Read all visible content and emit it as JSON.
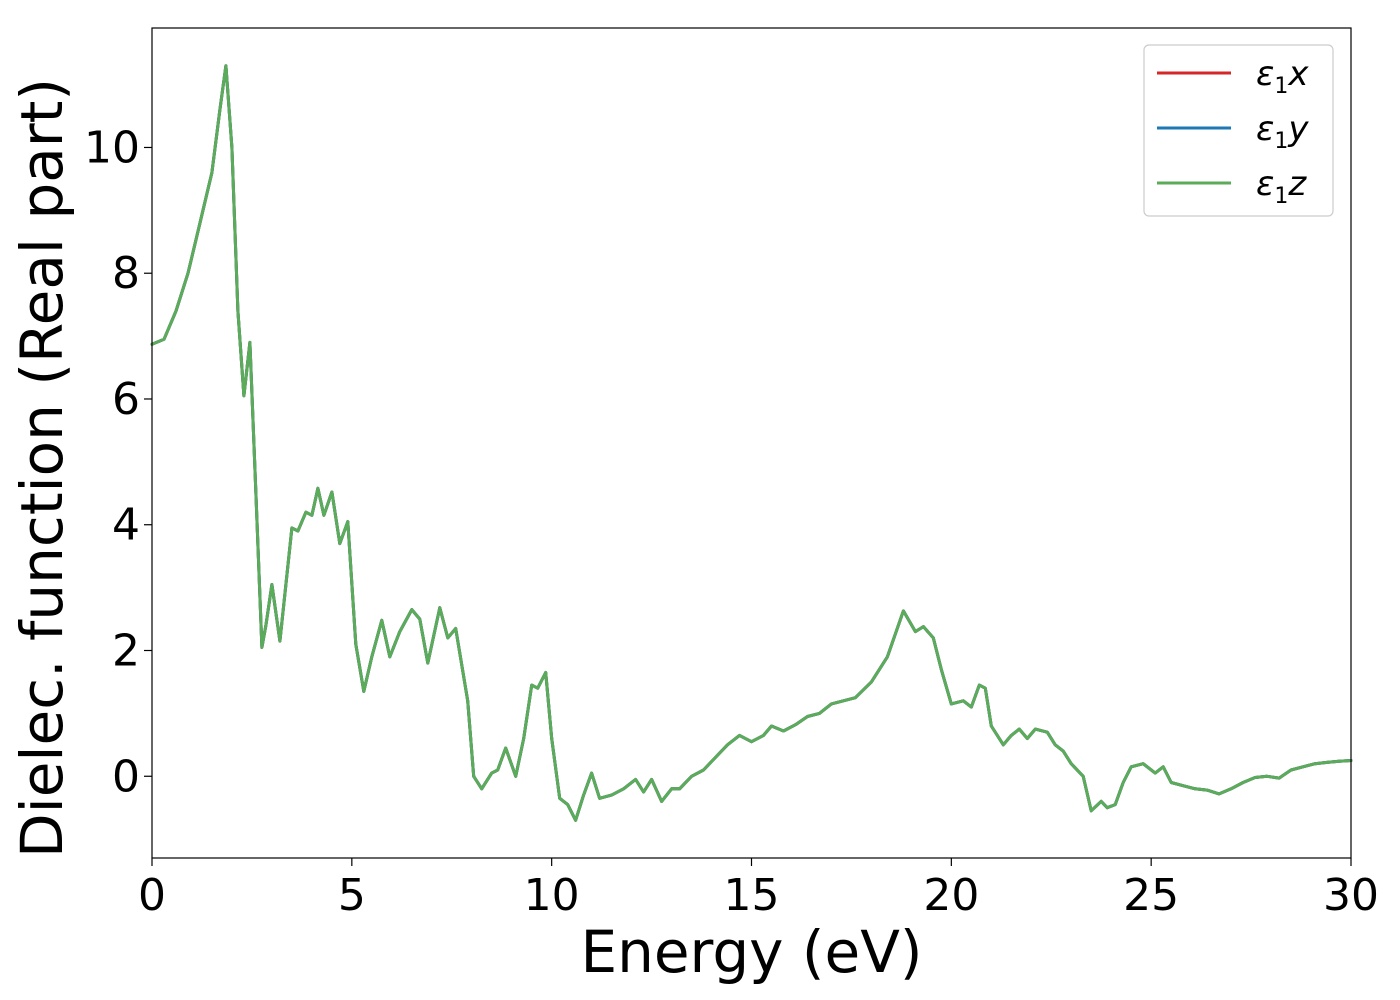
{
  "chart_data": {
    "type": "line",
    "title": "",
    "xlabel": "Energy (eV)",
    "ylabel": "Dielec. function (Real part)",
    "xlim": [
      0,
      30
    ],
    "ylim": [
      -1.3,
      11.9
    ],
    "xticks": [
      0,
      5,
      10,
      15,
      20,
      25,
      30
    ],
    "xtick_labels": [
      "0",
      "5",
      "10",
      "15",
      "20",
      "25",
      "30"
    ],
    "yticks": [
      0,
      2,
      4,
      6,
      8,
      10
    ],
    "ytick_labels": [
      "0",
      "2",
      "4",
      "6",
      "8",
      "10"
    ],
    "grid": false,
    "legend_position": "top-right",
    "series": [
      {
        "name": "ε1x",
        "base": "ε",
        "sub": "1",
        "axis": "x",
        "color": "#d62728",
        "x": [
          0,
          0.3,
          0.6,
          0.9,
          1.2,
          1.5,
          1.7,
          1.85,
          2.0,
          2.15,
          2.3,
          2.45,
          2.6,
          2.75,
          2.85,
          3.0,
          3.2,
          3.5,
          3.65,
          3.85,
          4.0,
          4.15,
          4.3,
          4.5,
          4.7,
          4.9,
          5.1,
          5.3,
          5.5,
          5.75,
          5.95,
          6.2,
          6.5,
          6.7,
          6.9,
          7.2,
          7.4,
          7.6,
          7.9,
          8.05,
          8.25,
          8.5,
          8.65,
          8.85,
          9.1,
          9.3,
          9.5,
          9.65,
          9.85,
          10.0,
          10.2,
          10.4,
          10.6,
          10.8,
          11.0,
          11.2,
          11.5,
          11.8,
          12.1,
          12.3,
          12.5,
          12.75,
          13.0,
          13.2,
          13.5,
          13.8,
          14.1,
          14.4,
          14.7,
          15.0,
          15.3,
          15.5,
          15.8,
          16.1,
          16.4,
          16.7,
          17.0,
          17.3,
          17.6,
          18.0,
          18.4,
          18.8,
          19.1,
          19.3,
          19.55,
          19.75,
          20.0,
          20.3,
          20.5,
          20.7,
          20.85,
          21.0,
          21.3,
          21.5,
          21.7,
          21.9,
          22.1,
          22.4,
          22.6,
          22.8,
          23.0,
          23.3,
          23.5,
          23.75,
          23.9,
          24.1,
          24.3,
          24.5,
          24.8,
          25.1,
          25.3,
          25.5,
          25.8,
          26.1,
          26.4,
          26.7,
          27.0,
          27.3,
          27.6,
          27.9,
          28.2,
          28.5,
          28.8,
          29.1,
          29.4,
          29.7,
          30.0
        ],
        "y": [
          6.87,
          6.95,
          7.4,
          8.0,
          8.8,
          9.6,
          10.6,
          11.3,
          10.0,
          7.4,
          6.05,
          6.9,
          4.5,
          2.05,
          2.4,
          3.05,
          2.15,
          3.95,
          3.9,
          4.2,
          4.15,
          4.58,
          4.15,
          4.52,
          3.7,
          4.05,
          2.1,
          1.35,
          1.9,
          2.48,
          1.9,
          2.3,
          2.65,
          2.5,
          1.8,
          2.68,
          2.2,
          2.35,
          1.2,
          0.0,
          -0.2,
          0.05,
          0.1,
          0.45,
          0.0,
          0.6,
          1.45,
          1.4,
          1.65,
          0.6,
          -0.35,
          -0.45,
          -0.7,
          -0.3,
          0.05,
          -0.35,
          -0.3,
          -0.2,
          -0.05,
          -0.25,
          -0.05,
          -0.4,
          -0.2,
          -0.2,
          0.0,
          0.1,
          0.3,
          0.5,
          0.65,
          0.55,
          0.65,
          0.8,
          0.72,
          0.82,
          0.95,
          1.0,
          1.15,
          1.2,
          1.25,
          1.5,
          1.9,
          2.63,
          2.3,
          2.38,
          2.2,
          1.7,
          1.15,
          1.2,
          1.1,
          1.45,
          1.4,
          0.8,
          0.5,
          0.65,
          0.75,
          0.6,
          0.75,
          0.7,
          0.5,
          0.4,
          0.2,
          0.0,
          -0.55,
          -0.4,
          -0.5,
          -0.45,
          -0.1,
          0.15,
          0.2,
          0.05,
          0.15,
          -0.1,
          -0.15,
          -0.2,
          -0.22,
          -0.28,
          -0.2,
          -0.1,
          -0.02,
          0.0,
          -0.03,
          0.1,
          0.15,
          0.2,
          0.22,
          0.24,
          0.25
        ]
      },
      {
        "name": "ε1y",
        "base": "ε",
        "sub": "1",
        "axis": "y",
        "color": "#1f77b4",
        "x": [
          0,
          0.3,
          0.6,
          0.9,
          1.2,
          1.5,
          1.7,
          1.85,
          2.0,
          2.15,
          2.3,
          2.45,
          2.6,
          2.75,
          2.85,
          3.0,
          3.2,
          3.5,
          3.65,
          3.85,
          4.0,
          4.15,
          4.3,
          4.5,
          4.7,
          4.9,
          5.1,
          5.3,
          5.5,
          5.75,
          5.95,
          6.2,
          6.5,
          6.7,
          6.9,
          7.2,
          7.4,
          7.6,
          7.9,
          8.05,
          8.25,
          8.5,
          8.65,
          8.85,
          9.1,
          9.3,
          9.5,
          9.65,
          9.85,
          10.0,
          10.2,
          10.4,
          10.6,
          10.8,
          11.0,
          11.2,
          11.5,
          11.8,
          12.1,
          12.3,
          12.5,
          12.75,
          13.0,
          13.2,
          13.5,
          13.8,
          14.1,
          14.4,
          14.7,
          15.0,
          15.3,
          15.5,
          15.8,
          16.1,
          16.4,
          16.7,
          17.0,
          17.3,
          17.6,
          18.0,
          18.4,
          18.8,
          19.1,
          19.3,
          19.55,
          19.75,
          20.0,
          20.3,
          20.5,
          20.7,
          20.85,
          21.0,
          21.3,
          21.5,
          21.7,
          21.9,
          22.1,
          22.4,
          22.6,
          22.8,
          23.0,
          23.3,
          23.5,
          23.75,
          23.9,
          24.1,
          24.3,
          24.5,
          24.8,
          25.1,
          25.3,
          25.5,
          25.8,
          26.1,
          26.4,
          26.7,
          27.0,
          27.3,
          27.6,
          27.9,
          28.2,
          28.5,
          28.8,
          29.1,
          29.4,
          29.7,
          30.0
        ],
        "y": [
          6.87,
          6.95,
          7.4,
          8.0,
          8.8,
          9.6,
          10.6,
          11.3,
          10.0,
          7.4,
          6.05,
          6.9,
          4.5,
          2.05,
          2.4,
          3.05,
          2.15,
          3.95,
          3.9,
          4.2,
          4.15,
          4.58,
          4.15,
          4.52,
          3.7,
          4.05,
          2.1,
          1.35,
          1.9,
          2.48,
          1.9,
          2.3,
          2.65,
          2.5,
          1.8,
          2.68,
          2.2,
          2.35,
          1.2,
          0.0,
          -0.2,
          0.05,
          0.1,
          0.45,
          0.0,
          0.6,
          1.45,
          1.4,
          1.65,
          0.6,
          -0.35,
          -0.45,
          -0.7,
          -0.3,
          0.05,
          -0.35,
          -0.3,
          -0.2,
          -0.05,
          -0.25,
          -0.05,
          -0.4,
          -0.2,
          -0.2,
          0.0,
          0.1,
          0.3,
          0.5,
          0.65,
          0.55,
          0.65,
          0.8,
          0.72,
          0.82,
          0.95,
          1.0,
          1.15,
          1.2,
          1.25,
          1.5,
          1.9,
          2.63,
          2.3,
          2.38,
          2.2,
          1.7,
          1.15,
          1.2,
          1.1,
          1.45,
          1.4,
          0.8,
          0.5,
          0.65,
          0.75,
          0.6,
          0.75,
          0.7,
          0.5,
          0.4,
          0.2,
          0.0,
          -0.55,
          -0.4,
          -0.5,
          -0.45,
          -0.1,
          0.15,
          0.2,
          0.05,
          0.15,
          -0.1,
          -0.15,
          -0.2,
          -0.22,
          -0.28,
          -0.2,
          -0.1,
          -0.02,
          0.0,
          -0.03,
          0.1,
          0.15,
          0.2,
          0.22,
          0.24,
          0.25
        ]
      },
      {
        "name": "ε1z",
        "base": "ε",
        "sub": "1",
        "axis": "z",
        "color": "#5aab5a",
        "x": [
          0,
          0.3,
          0.6,
          0.9,
          1.2,
          1.5,
          1.7,
          1.85,
          2.0,
          2.15,
          2.3,
          2.45,
          2.6,
          2.75,
          2.85,
          3.0,
          3.2,
          3.5,
          3.65,
          3.85,
          4.0,
          4.15,
          4.3,
          4.5,
          4.7,
          4.9,
          5.1,
          5.3,
          5.5,
          5.75,
          5.95,
          6.2,
          6.5,
          6.7,
          6.9,
          7.2,
          7.4,
          7.6,
          7.9,
          8.05,
          8.25,
          8.5,
          8.65,
          8.85,
          9.1,
          9.3,
          9.5,
          9.65,
          9.85,
          10.0,
          10.2,
          10.4,
          10.6,
          10.8,
          11.0,
          11.2,
          11.5,
          11.8,
          12.1,
          12.3,
          12.5,
          12.75,
          13.0,
          13.2,
          13.5,
          13.8,
          14.1,
          14.4,
          14.7,
          15.0,
          15.3,
          15.5,
          15.8,
          16.1,
          16.4,
          16.7,
          17.0,
          17.3,
          17.6,
          18.0,
          18.4,
          18.8,
          19.1,
          19.3,
          19.55,
          19.75,
          20.0,
          20.3,
          20.5,
          20.7,
          20.85,
          21.0,
          21.3,
          21.5,
          21.7,
          21.9,
          22.1,
          22.4,
          22.6,
          22.8,
          23.0,
          23.3,
          23.5,
          23.75,
          23.9,
          24.1,
          24.3,
          24.5,
          24.8,
          25.1,
          25.3,
          25.5,
          25.8,
          26.1,
          26.4,
          26.7,
          27.0,
          27.3,
          27.6,
          27.9,
          28.2,
          28.5,
          28.8,
          29.1,
          29.4,
          29.7,
          30.0
        ],
        "y": [
          6.87,
          6.95,
          7.4,
          8.0,
          8.8,
          9.6,
          10.6,
          11.3,
          10.0,
          7.4,
          6.05,
          6.9,
          4.5,
          2.05,
          2.4,
          3.05,
          2.15,
          3.95,
          3.9,
          4.2,
          4.15,
          4.58,
          4.15,
          4.52,
          3.7,
          4.05,
          2.1,
          1.35,
          1.9,
          2.48,
          1.9,
          2.3,
          2.65,
          2.5,
          1.8,
          2.68,
          2.2,
          2.35,
          1.2,
          0.0,
          -0.2,
          0.05,
          0.1,
          0.45,
          0.0,
          0.6,
          1.45,
          1.4,
          1.65,
          0.6,
          -0.35,
          -0.45,
          -0.7,
          -0.3,
          0.05,
          -0.35,
          -0.3,
          -0.2,
          -0.05,
          -0.25,
          -0.05,
          -0.4,
          -0.2,
          -0.2,
          0.0,
          0.1,
          0.3,
          0.5,
          0.65,
          0.55,
          0.65,
          0.8,
          0.72,
          0.82,
          0.95,
          1.0,
          1.15,
          1.2,
          1.25,
          1.5,
          1.9,
          2.63,
          2.3,
          2.38,
          2.2,
          1.7,
          1.15,
          1.2,
          1.1,
          1.45,
          1.4,
          0.8,
          0.5,
          0.65,
          0.75,
          0.6,
          0.75,
          0.7,
          0.5,
          0.4,
          0.2,
          0.0,
          -0.55,
          -0.4,
          -0.5,
          -0.45,
          -0.1,
          0.15,
          0.2,
          0.05,
          0.15,
          -0.1,
          -0.15,
          -0.2,
          -0.22,
          -0.28,
          -0.2,
          -0.1,
          -0.02,
          0.0,
          -0.03,
          0.1,
          0.15,
          0.2,
          0.22,
          0.24,
          0.25
        ]
      }
    ]
  }
}
